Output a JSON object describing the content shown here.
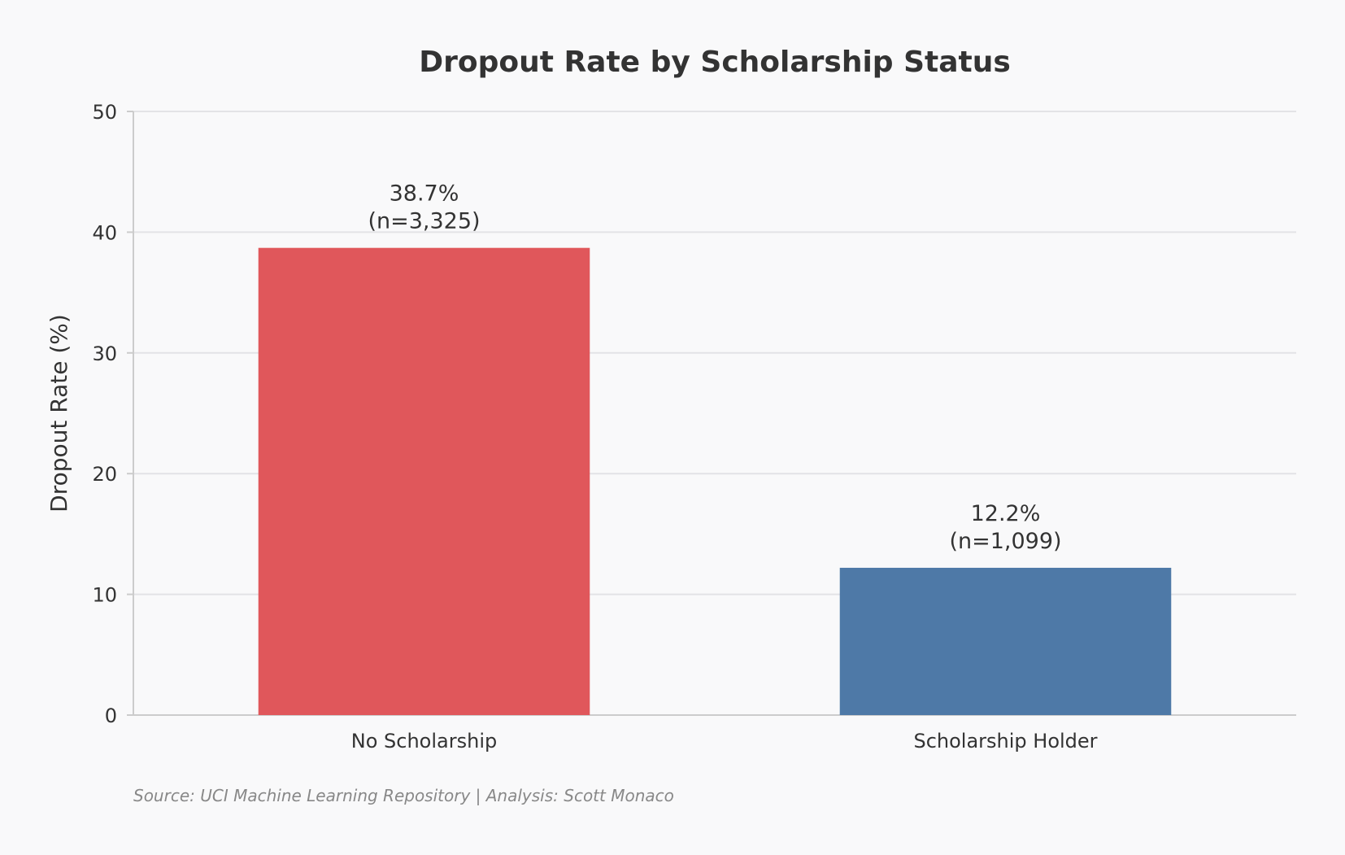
{
  "chart_data": {
    "type": "bar",
    "title": "Dropout Rate by Scholarship Status",
    "xlabel": "",
    "ylabel": "Dropout Rate (%)",
    "ylim": [
      0,
      50
    ],
    "yticks": [
      0,
      10,
      20,
      30,
      40,
      50
    ],
    "categories": [
      "No Scholarship",
      "Scholarship Holder"
    ],
    "values": [
      38.7,
      12.2
    ],
    "data_labels": [
      {
        "value": "38.7%",
        "n": "(n=3,325)"
      },
      {
        "value": "12.2%",
        "n": "(n=1,099)"
      }
    ],
    "colors": [
      "#e0575b",
      "#4e79a7"
    ],
    "grid": true,
    "legend": "none"
  },
  "footer": {
    "source": "Source: UCI Machine Learning Repository | Analysis: Scott Monaco"
  }
}
